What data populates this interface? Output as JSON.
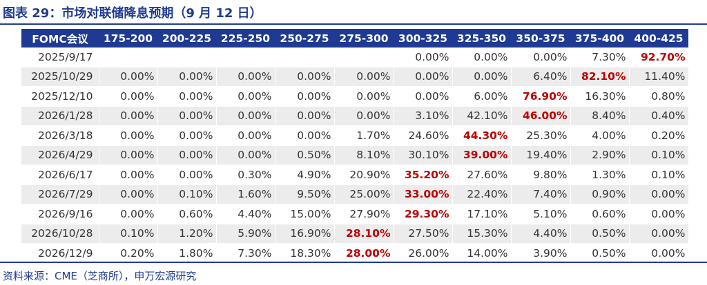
{
  "title": "图表 29：市场对联储降息预期（9 月 12 日）",
  "source": "资料来源：CME（芝商所），申万宏源研究",
  "table": {
    "headers": [
      "FOMC会议",
      "175-200",
      "200-225",
      "225-250",
      "250-275",
      "275-300",
      "300-325",
      "325-350",
      "350-375",
      "375-400",
      "400-425"
    ],
    "rows": [
      {
        "date": "2025/9/17",
        "cells": [
          "",
          "",
          "",
          "",
          "",
          "0.00%",
          "0.00%",
          "0.00%",
          "7.30%",
          "92.70%"
        ],
        "highlight": 9
      },
      {
        "date": "2025/10/29",
        "cells": [
          "0.00%",
          "0.00%",
          "0.00%",
          "0.00%",
          "0.00%",
          "0.00%",
          "0.00%",
          "6.40%",
          "82.10%",
          "11.40%"
        ],
        "highlight": 8
      },
      {
        "date": "2025/12/10",
        "cells": [
          "0.00%",
          "0.00%",
          "0.00%",
          "0.00%",
          "0.00%",
          "0.00%",
          "6.00%",
          "76.90%",
          "16.30%",
          "0.80%"
        ],
        "highlight": 7
      },
      {
        "date": "2026/1/28",
        "cells": [
          "0.00%",
          "0.00%",
          "0.00%",
          "0.00%",
          "0.00%",
          "3.10%",
          "42.10%",
          "46.00%",
          "8.40%",
          "0.40%"
        ],
        "highlight": 7
      },
      {
        "date": "2026/3/18",
        "cells": [
          "0.00%",
          "0.00%",
          "0.00%",
          "0.00%",
          "1.70%",
          "24.60%",
          "44.30%",
          "25.30%",
          "4.00%",
          "0.20%"
        ],
        "highlight": 6
      },
      {
        "date": "2026/4/29",
        "cells": [
          "0.00%",
          "0.00%",
          "0.00%",
          "0.50%",
          "8.10%",
          "30.10%",
          "39.00%",
          "19.40%",
          "2.90%",
          "0.10%"
        ],
        "highlight": 6
      },
      {
        "date": "2026/6/17",
        "cells": [
          "0.00%",
          "0.00%",
          "0.30%",
          "4.90%",
          "20.90%",
          "35.20%",
          "27.60%",
          "9.80%",
          "1.30%",
          "0.10%"
        ],
        "highlight": 5
      },
      {
        "date": "2026/7/29",
        "cells": [
          "0.00%",
          "0.10%",
          "1.60%",
          "9.50%",
          "25.00%",
          "33.00%",
          "22.40%",
          "7.40%",
          "0.90%",
          "0.00%"
        ],
        "highlight": 5
      },
      {
        "date": "2026/9/16",
        "cells": [
          "0.00%",
          "0.60%",
          "4.40%",
          "15.00%",
          "27.90%",
          "29.30%",
          "17.10%",
          "5.10%",
          "0.60%",
          "0.00%"
        ],
        "highlight": 5
      },
      {
        "date": "2026/10/28",
        "cells": [
          "0.10%",
          "1.20%",
          "5.90%",
          "16.90%",
          "28.10%",
          "27.50%",
          "15.30%",
          "4.40%",
          "0.50%",
          "0.00%"
        ],
        "highlight": 4
      },
      {
        "date": "2026/12/9",
        "cells": [
          "0.20%",
          "1.80%",
          "7.30%",
          "18.30%",
          "28.00%",
          "26.00%",
          "14.00%",
          "3.90%",
          "0.50%",
          "0.00%"
        ],
        "highlight": 4
      }
    ]
  },
  "colors": {
    "brand": "#1f3a93",
    "highlight": "#c00000",
    "stripe": "#ececec"
  }
}
